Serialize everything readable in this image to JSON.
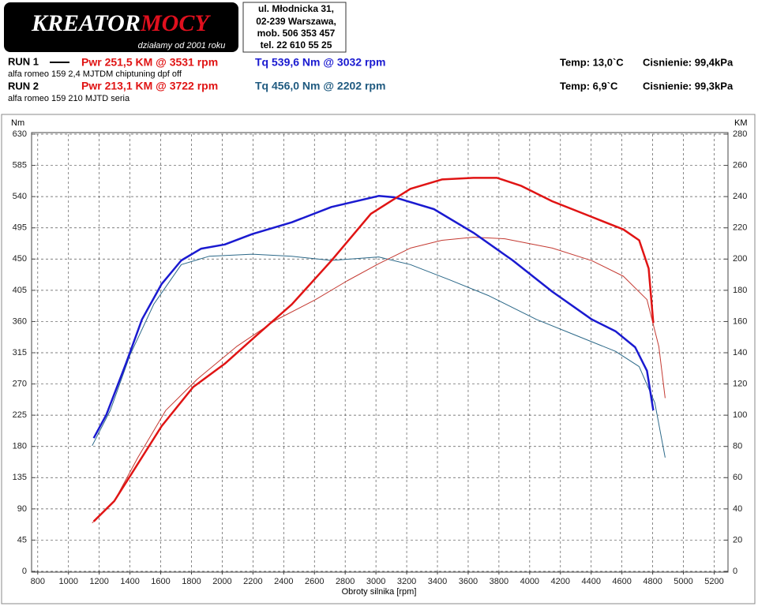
{
  "header": {
    "logo_left": "KREATOR",
    "logo_right": "MOCY",
    "tagline": "działamy od 2001 roku",
    "address": [
      "ul. Młodnicka 31,",
      "02-239  Warszawa,",
      "mob.  506 353 457",
      "tel.  22 610 55 25"
    ]
  },
  "runs": [
    {
      "label": "RUN 1",
      "description": "alfa romeo 159 2,4 MJTDM chiptuning dpf off",
      "power": "Pwr  251,5 KM @ 3531 rpm",
      "torque": "Tq 539,6 Nm @ 3032 rpm",
      "temp": "Temp: 13,0`C",
      "pressure": "Cisnienie: 99,4kPa"
    },
    {
      "label": "RUN 2",
      "description": "alfa romeo 159 210 MJTD seria",
      "power": "Pwr  213,1 KM @ 3722 rpm",
      "torque": "Tq 456,0 Nm @ 2202 rpm",
      "temp": "Temp: 6,9`C",
      "pressure": "Cisnienie: 99,3kPa"
    }
  ],
  "chart_data": {
    "type": "line",
    "x_label": "Obroty silnika [rpm]",
    "y_label": "Nm",
    "y2_label": "KM",
    "xlim": [
      760,
      5290
    ],
    "xticks": [
      800,
      1000,
      1200,
      1400,
      1600,
      1800,
      2000,
      2200,
      2400,
      2600,
      2800,
      3000,
      3200,
      3400,
      3600,
      3800,
      4000,
      4200,
      4400,
      4600,
      4800,
      5000,
      5200
    ],
    "ylim": [
      0,
      630
    ],
    "yticks": [
      0,
      45,
      90,
      135,
      180,
      225,
      270,
      315,
      360,
      405,
      450,
      495,
      540,
      585,
      630
    ],
    "y2lim": [
      0,
      280
    ],
    "y2ticks": [
      0,
      20,
      40,
      60,
      80,
      100,
      120,
      140,
      160,
      180,
      200,
      220,
      240,
      260,
      280
    ],
    "grid": true,
    "series": [
      {
        "color": "#2b6888",
        "width": 1,
        "x": [
          1154,
          1272,
          1401,
          1555,
          1734,
          1914,
          2196,
          2453,
          2710,
          3018,
          3224,
          3480,
          3736,
          4044,
          4301,
          4558,
          4712,
          4814,
          4881
        ],
        "values": [
          181,
          232,
          312,
          385,
          442,
          454,
          457,
          454,
          448,
          453,
          442,
          420,
          397,
          363,
          340,
          317,
          295,
          243,
          164
        ]
      },
      {
        "color": "#c43a32",
        "width": 1,
        "axis": "y2",
        "x": [
          1154,
          1298,
          1452,
          1632,
          1837,
          2094,
          2350,
          2607,
          2812,
          3018,
          3224,
          3429,
          3634,
          3839,
          4147,
          4404,
          4609,
          4763,
          4840,
          4881
        ],
        "values": [
          31,
          45,
          73,
          103,
          123,
          144,
          161,
          174,
          186,
          197,
          207,
          212,
          214,
          213,
          207,
          199,
          189,
          174,
          144,
          111
        ]
      },
      {
        "color": "#1a1ad0",
        "width": 2.5,
        "x": [
          1164,
          1247,
          1375,
          1478,
          1606,
          1734,
          1863,
          2017,
          2196,
          2453,
          2710,
          3018,
          3120,
          3377,
          3634,
          3890,
          4147,
          4404,
          4558,
          4686,
          4763,
          4804
        ],
        "values": [
          192,
          226,
          300,
          363,
          414,
          448,
          465,
          471,
          486,
          503,
          525,
          541,
          539,
          522,
          488,
          448,
          403,
          363,
          346,
          323,
          289,
          232
        ]
      },
      {
        "color": "#e01414",
        "width": 2.5,
        "axis": "y2",
        "x": [
          1164,
          1298,
          1426,
          1606,
          1811,
          2017,
          2222,
          2453,
          2710,
          2967,
          3224,
          3429,
          3634,
          3788,
          3942,
          4147,
          4404,
          4609,
          4712,
          4774,
          4804
        ],
        "values": [
          32,
          45,
          65,
          93,
          118,
          133,
          151,
          171,
          199,
          229,
          245,
          251,
          252,
          252,
          247,
          237,
          227,
          219,
          212,
          194,
          159
        ]
      }
    ]
  }
}
